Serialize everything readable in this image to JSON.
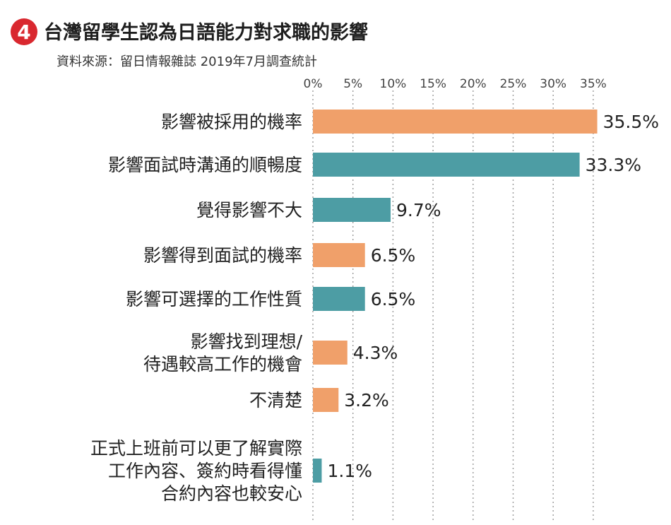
{
  "badge": "4",
  "title": "台灣留學生認為日語能力對求職的影響",
  "subtitle": "資料來源：留日情報雜誌 2019年7月調查統計",
  "colors": {
    "orange": "#f0a06a",
    "teal": "#4d9da4",
    "badge": "#d9282f"
  },
  "chart_data": {
    "type": "bar",
    "orientation": "horizontal",
    "title": "台灣留學生認為日語能力對求職的影響",
    "xlabel": "",
    "ylabel": "",
    "xlim": [
      0,
      36
    ],
    "ticks": [
      0,
      5,
      10,
      15,
      20,
      25,
      30,
      35
    ],
    "tick_labels": [
      "0%",
      "5%",
      "10%",
      "15%",
      "20%",
      "25%",
      "30%",
      "35%"
    ],
    "grid": true,
    "categories": [
      [
        "影響被採用的機率"
      ],
      [
        "影響面試時溝通的順暢度"
      ],
      [
        "覺得影響不大"
      ],
      [
        "影響得到面試的機率"
      ],
      [
        "影響可選擇的工作性質"
      ],
      [
        "影響找到理想/",
        "待遇較高工作的機會"
      ],
      [
        "不清楚"
      ],
      [
        "正式上班前可以更了解實際",
        "工作內容、簽約時看得懂",
        "合約內容也較安心"
      ]
    ],
    "values": [
      35.5,
      33.3,
      9.7,
      6.5,
      6.5,
      4.3,
      3.2,
      1.1
    ],
    "value_labels": [
      "35.5%",
      "33.3%",
      "9.7%",
      "6.5%",
      "6.5%",
      "4.3%",
      "3.2%",
      "1.1%"
    ],
    "bar_colors": [
      "orange",
      "teal",
      "teal",
      "orange",
      "teal",
      "orange",
      "orange",
      "teal"
    ]
  }
}
